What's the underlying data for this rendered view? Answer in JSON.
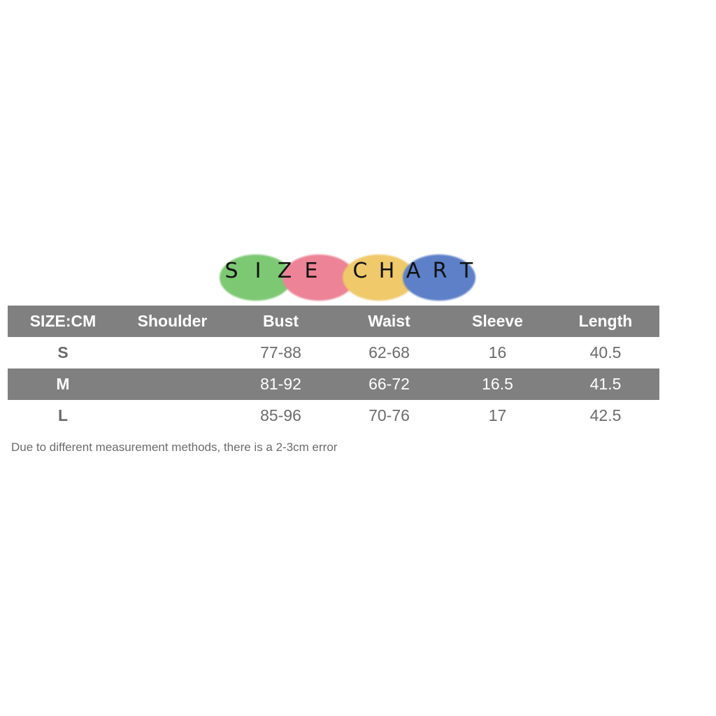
{
  "logo": {
    "text": "SIZE CHART",
    "letters": [
      "S",
      "I",
      "Z",
      "E",
      " ",
      "C",
      "H",
      "A",
      "R",
      "T"
    ],
    "colors": [
      "#7dc873",
      "#ec8396",
      "#efc96a",
      "#5d80c8"
    ]
  },
  "table": {
    "headers": [
      "SIZE:CM",
      "Shoulder",
      "Bust",
      "Waist",
      "Sleeve",
      "Length"
    ],
    "rows": [
      [
        "S",
        "",
        "77-88",
        "62-68",
        "16",
        "40.5"
      ],
      [
        "M",
        "",
        "81-92",
        "66-72",
        "16.5",
        "41.5"
      ],
      [
        "L",
        "",
        "85-96",
        "70-76",
        "17",
        "42.5"
      ]
    ],
    "header_color": "#808080"
  },
  "note": "Due to different measurement methods, there is a 2-3cm error"
}
